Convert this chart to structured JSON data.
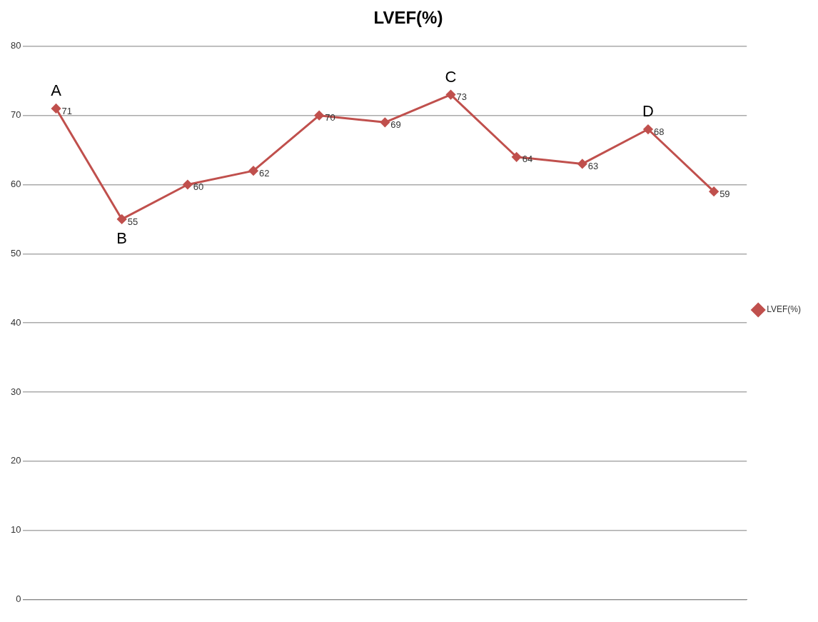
{
  "chart_data": {
    "type": "line",
    "title": "LVEF(%)",
    "categories": [
      null,
      null,
      null,
      null,
      null,
      null,
      null,
      null,
      null,
      null,
      null
    ],
    "series": [
      {
        "name": "LVEF(%)",
        "color": "#c0504d",
        "values": [
          71,
          55,
          60,
          62,
          70,
          69,
          73,
          64,
          63,
          68,
          59
        ]
      }
    ],
    "ylim": [
      0,
      80
    ],
    "yticks": [
      0,
      10,
      20,
      30,
      40,
      50,
      60,
      70,
      80
    ],
    "grid": "y",
    "legend": "right",
    "marker": "diamond",
    "line_style": "solid",
    "data_labels": true,
    "annotations": [
      {
        "text": "A",
        "y": 71
      },
      {
        "text": "B",
        "y": 55
      },
      {
        "text": "C",
        "y": 73
      },
      {
        "text": "D",
        "y": 68
      }
    ]
  }
}
